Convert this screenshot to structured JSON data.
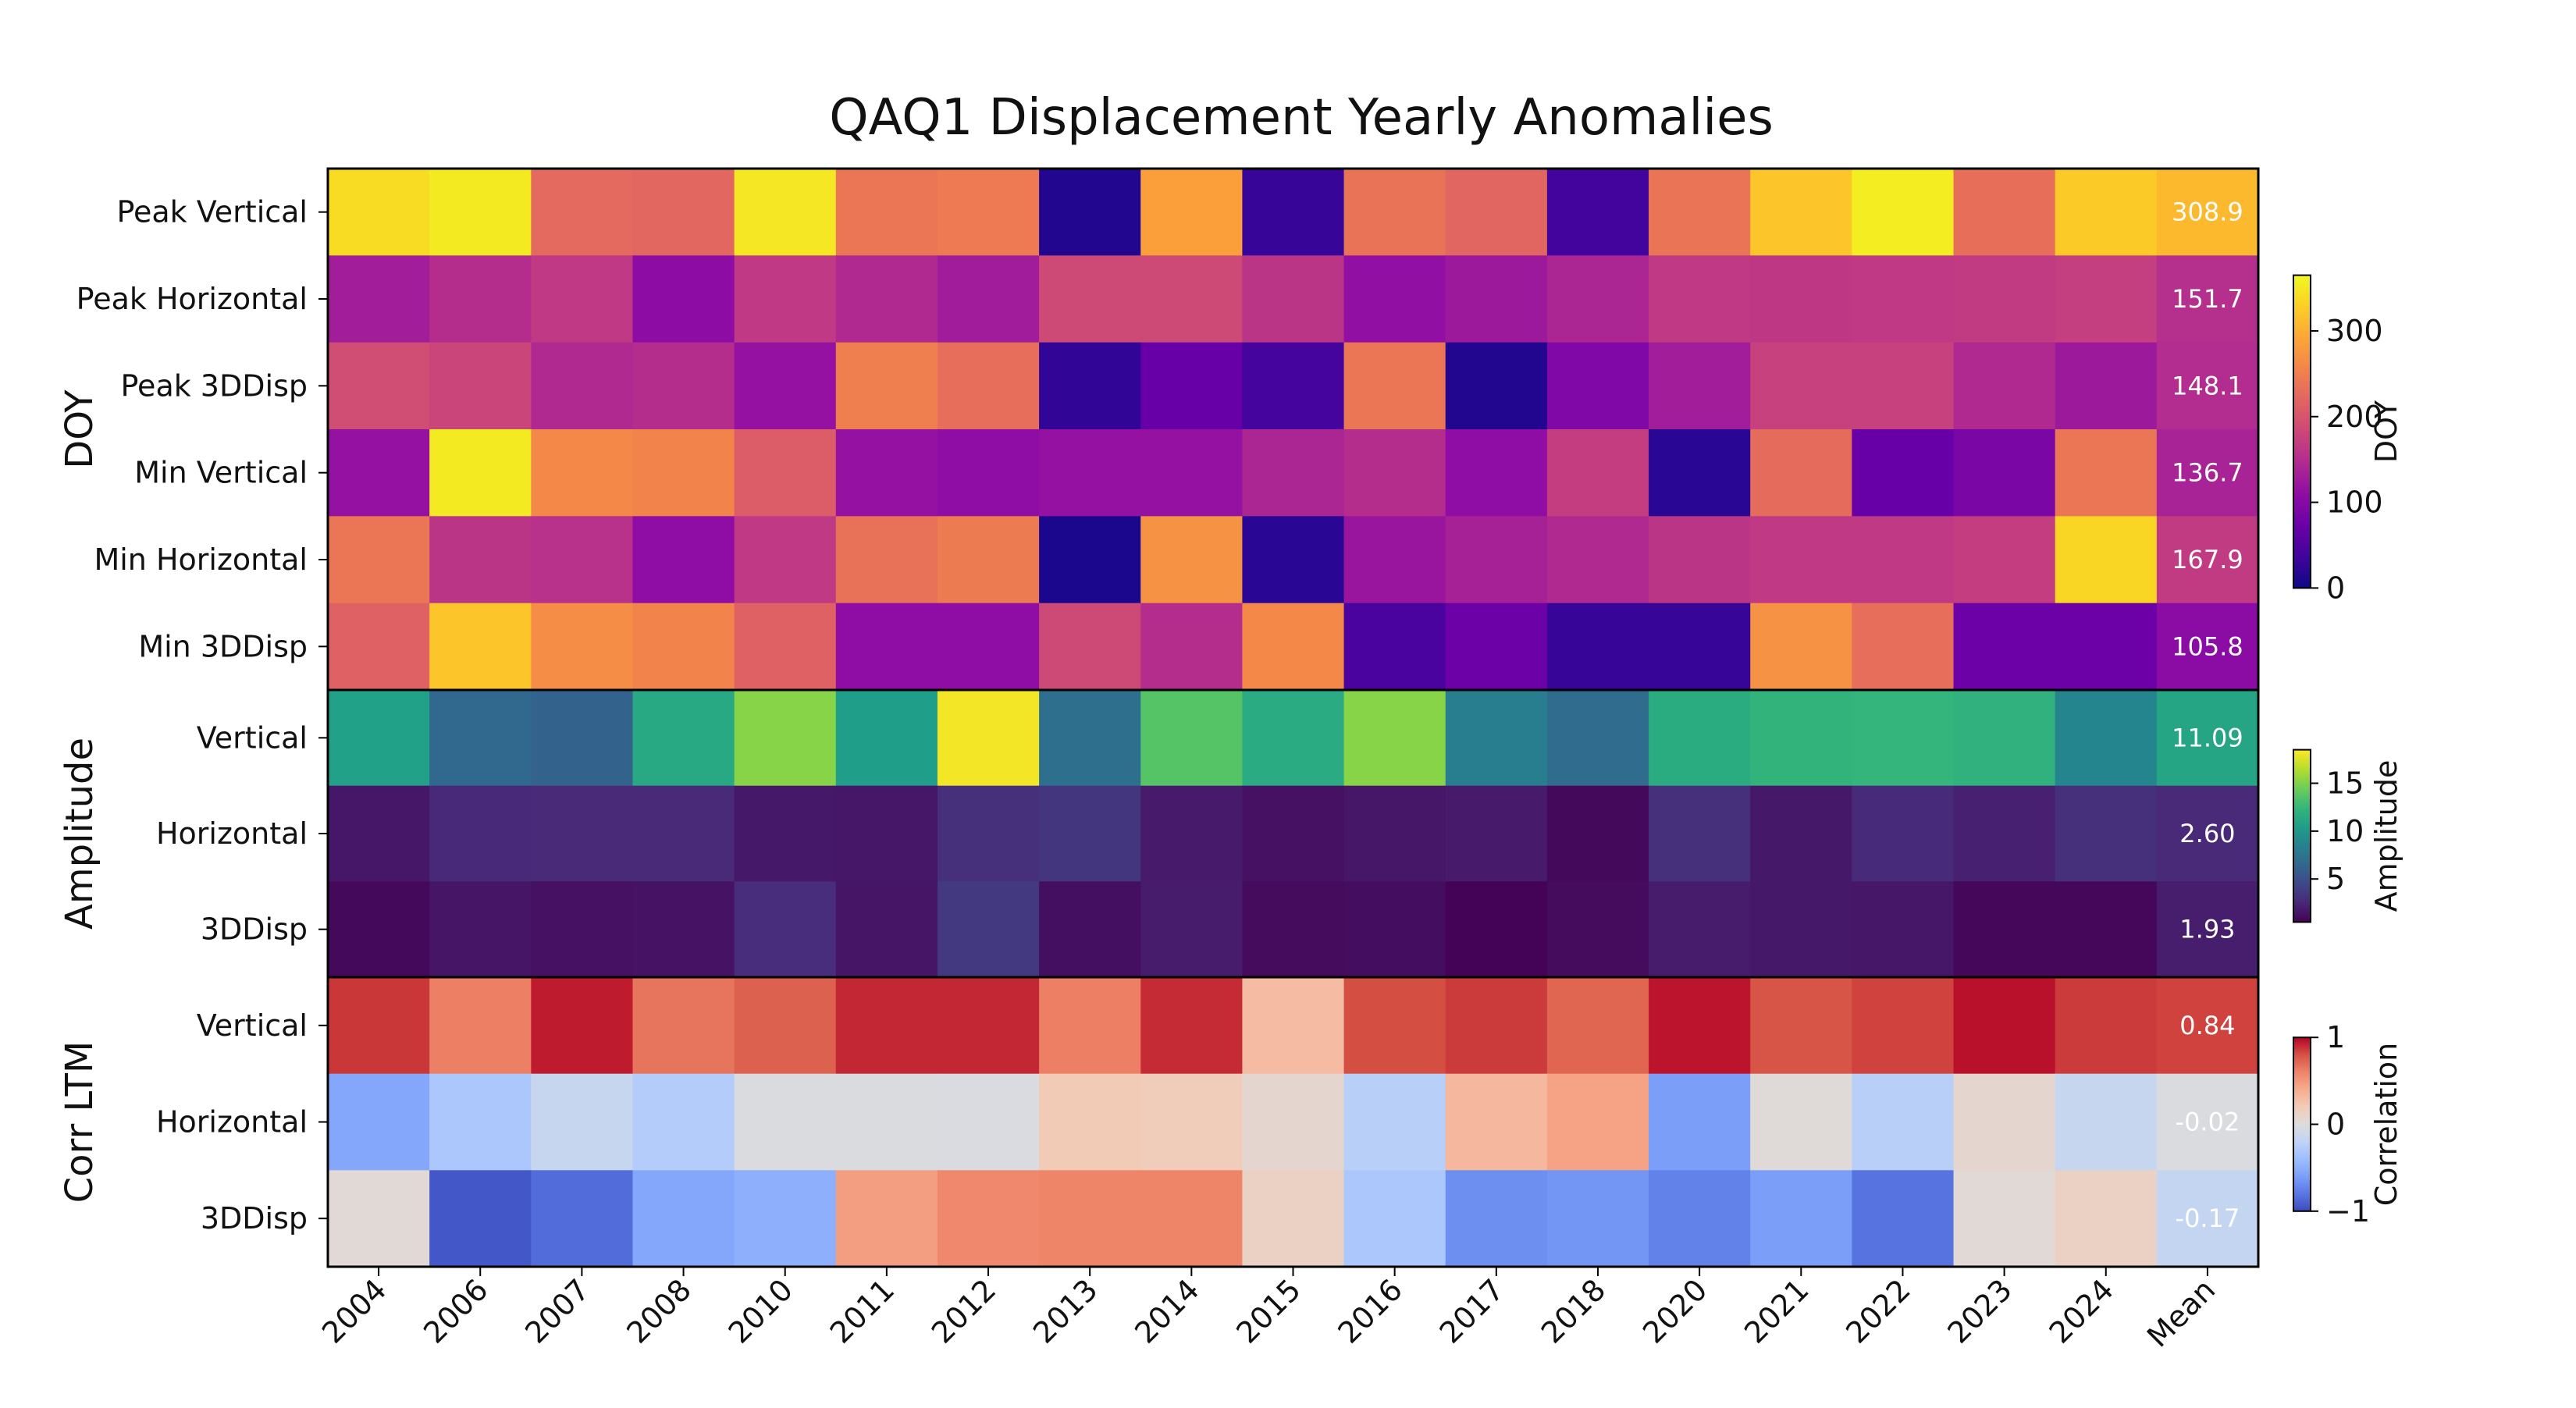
{
  "chart_data": {
    "type": "heatmap",
    "title": "QAQ1 Displacement Yearly Anomalies",
    "columns": [
      "2004",
      "2006",
      "2007",
      "2008",
      "2010",
      "2011",
      "2012",
      "2013",
      "2014",
      "2015",
      "2016",
      "2017",
      "2018",
      "2020",
      "2021",
      "2022",
      "2023",
      "2024",
      "Mean"
    ],
    "blocks": [
      {
        "label": "DOY",
        "colormap": "plasma",
        "colorbar_label": "DOY",
        "vmin": 0,
        "vmax": 365,
        "colorbar_ticks": [
          0,
          100,
          200,
          300
        ],
        "mean_format": "1",
        "rows": [
          {
            "label": "Peak Vertical",
            "values": [
              340,
              352,
              225,
              222,
              350,
              240,
              244,
              15,
              285,
              30,
              236,
              220,
              38,
              238,
              320,
              355,
              232,
              325,
              308.9
            ]
          },
          {
            "label": "Peak Horizontal",
            "values": [
              130,
              150,
              165,
              108,
              165,
              145,
              128,
              185,
              185,
              160,
              112,
              125,
              140,
              165,
              162,
              165,
              168,
              172,
              151.7
            ]
          },
          {
            "label": "Peak 3DDisp",
            "values": [
              190,
              180,
              145,
              150,
              115,
              250,
              230,
              25,
              70,
              40,
              240,
              15,
              95,
              130,
              175,
              175,
              145,
              125,
              148.1
            ]
          },
          {
            "label": "Min Vertical",
            "values": [
              115,
              352,
              260,
              255,
              210,
              115,
              110,
              115,
              115,
              140,
              150,
              110,
              170,
              20,
              228,
              70,
              90,
              240,
              136.7
            ]
          },
          {
            "label": "Min Horizontal",
            "values": [
              240,
              160,
              155,
              110,
              165,
              235,
              245,
              10,
              270,
              20,
              120,
              135,
              145,
              160,
              165,
              165,
              170,
              335,
              167.9
            ]
          },
          {
            "label": "Min 3DDisp",
            "values": [
              215,
              320,
              265,
              255,
              215,
              110,
              110,
              185,
              150,
              260,
              45,
              75,
              30,
              30,
              270,
              230,
              75,
              75,
              105.8
            ]
          }
        ]
      },
      {
        "label": "Amplitude",
        "colormap": "viridis",
        "colorbar_label": "Amplitude",
        "vmin": 0.5,
        "vmax": 18.5,
        "colorbar_ticks": [
          5,
          10,
          15
        ],
        "mean_format": "2",
        "rows": [
          {
            "label": "Vertical",
            "values": [
              10.7,
              6.5,
              6.2,
              11.3,
              15.2,
              10.5,
              18.2,
              7.0,
              13.6,
              11.5,
              15.2,
              8.2,
              6.8,
              11.6,
              12.2,
              12.3,
              12.0,
              8.7,
              11.09
            ]
          },
          {
            "label": "Horizontal",
            "values": [
              1.6,
              2.5,
              2.6,
              2.6,
              1.7,
              1.6,
              3.0,
              3.3,
              1.8,
              1.3,
              1.6,
              1.8,
              0.9,
              3.0,
              1.7,
              2.7,
              2.1,
              3.0,
              2.6
            ]
          },
          {
            "label": "3DDisp",
            "values": [
              0.9,
              1.5,
              1.3,
              1.4,
              2.8,
              1.5,
              3.5,
              1.2,
              1.9,
              1.0,
              1.1,
              0.6,
              1.0,
              1.9,
              1.7,
              1.6,
              0.8,
              0.8,
              1.93
            ]
          }
        ]
      },
      {
        "label": "Corr LTM",
        "colormap": "coolwarm",
        "colorbar_label": "Correlation",
        "vmin": -1,
        "vmax": 1,
        "colorbar_ticks": [
          -1,
          0,
          1
        ],
        "mean_format": "2",
        "rows": [
          {
            "label": "Vertical",
            "values": [
              0.87,
              0.62,
              0.94,
              0.66,
              0.74,
              0.91,
              0.91,
              0.62,
              0.9,
              0.3,
              0.81,
              0.86,
              0.72,
              0.96,
              0.79,
              0.84,
              0.97,
              0.86,
              0.84
            ]
          },
          {
            "label": "Horizontal",
            "values": [
              -0.55,
              -0.32,
              -0.15,
              -0.27,
              -0.02,
              -0.02,
              -0.03,
              0.2,
              0.18,
              0.07,
              -0.25,
              0.32,
              0.45,
              -0.6,
              0.02,
              -0.25,
              0.07,
              -0.15,
              -0.02
            ]
          },
          {
            "label": "3DDisp",
            "values": [
              0.03,
              -0.95,
              -0.85,
              -0.55,
              -0.5,
              0.47,
              0.58,
              0.6,
              0.6,
              0.13,
              -0.32,
              -0.68,
              -0.65,
              -0.75,
              -0.6,
              -0.82,
              0.03,
              0.13,
              -0.17
            ]
          }
        ]
      }
    ]
  }
}
